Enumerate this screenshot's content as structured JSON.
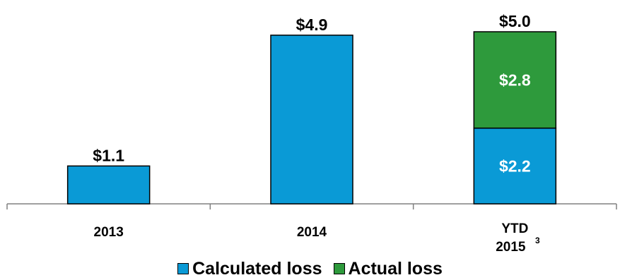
{
  "chart_data": {
    "type": "bar",
    "stacked": true,
    "categories": [
      "2013",
      "2014",
      "YTD 2015"
    ],
    "category_footnotes": [
      "",
      "",
      "3"
    ],
    "series": [
      {
        "name": "Calculated loss",
        "color": "#0a9ad6",
        "values": [
          1.1,
          4.9,
          2.2
        ],
        "labels": [
          "$1.1",
          "$4.9",
          "$2.2"
        ]
      },
      {
        "name": "Actual loss",
        "color": "#2e9a3c",
        "values": [
          0,
          0,
          2.8
        ],
        "labels": [
          "",
          "",
          "$2.8"
        ]
      }
    ],
    "totals": [
      "$1.1",
      "$4.9",
      "$5.0"
    ],
    "ylim": [
      0,
      5.0
    ],
    "grid": false,
    "legend_position": "bottom"
  },
  "legend": {
    "calculated_label": "Calculated loss",
    "actual_label": "Actual loss"
  }
}
